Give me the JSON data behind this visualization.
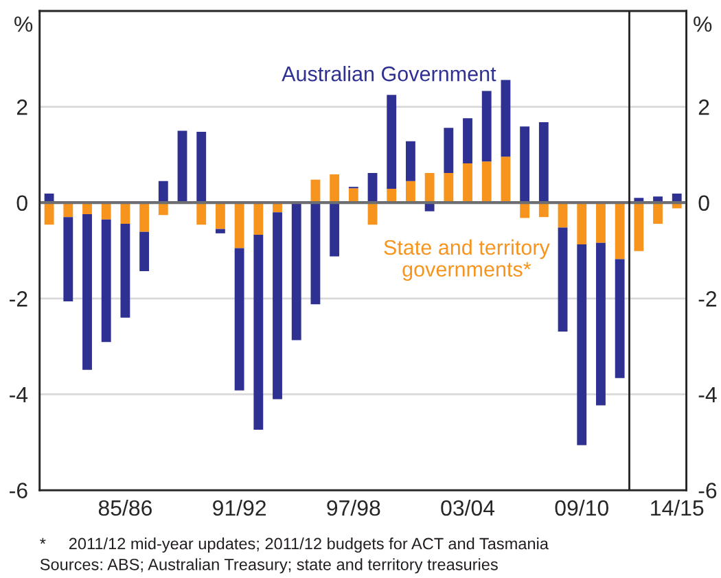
{
  "chart_data": {
    "type": "bar",
    "stacked": true,
    "categories": [
      null,
      null,
      null,
      null,
      "85/86",
      null,
      null,
      null,
      null,
      null,
      "91/92",
      null,
      null,
      null,
      null,
      null,
      "97/98",
      null,
      null,
      null,
      null,
      null,
      "03/04",
      null,
      null,
      null,
      null,
      null,
      "09/10",
      null,
      null,
      null,
      null,
      "14/15"
    ],
    "series": [
      {
        "name": "State and territory governments*",
        "color": "#f7941d",
        "values": [
          -0.46,
          -0.3,
          -0.24,
          -0.35,
          -0.44,
          -0.61,
          -0.26,
          0.0,
          -0.46,
          -0.55,
          -0.95,
          -0.67,
          -0.2,
          0.0,
          0.48,
          0.59,
          0.3,
          -0.46,
          0.29,
          0.45,
          0.62,
          0.62,
          0.82,
          0.86,
          0.96,
          -0.32,
          -0.3,
          -0.52,
          -0.87,
          -0.84,
          -1.18,
          -1.01,
          -0.44,
          -0.12
        ]
      },
      {
        "name": "Australian Government",
        "color": "#2e3192",
        "values": [
          0.19,
          -1.76,
          -3.25,
          -2.56,
          -1.96,
          -0.82,
          0.45,
          1.5,
          1.48,
          -0.09,
          -2.97,
          -4.07,
          -3.9,
          -2.87,
          -2.12,
          -1.12,
          0.03,
          0.62,
          1.96,
          0.83,
          -0.18,
          0.94,
          0.94,
          1.47,
          1.6,
          1.59,
          1.68,
          -2.17,
          -4.19,
          -3.39,
          -2.48,
          0.1,
          0.13,
          0.19
        ]
      }
    ],
    "ylim": [
      -6,
      4
    ],
    "yticks": [
      -6,
      -4,
      -2,
      0,
      2
    ],
    "y2lim": [
      -6,
      4
    ],
    "y2ticks": [
      -6,
      -4,
      -2,
      0,
      2
    ],
    "ylabel": "%",
    "y2label": "%",
    "grid": "y",
    "legend": false,
    "ref_lines": [
      {
        "axis": "y",
        "value": 0,
        "color": "#6d6e71"
      }
    ],
    "annotations": [
      "*     2011/12 mid-year updates; 2011/12 budgets for ACT and Tasmania",
      "Sources: ABS; Australian Treasury; state and territory treasuries"
    ]
  }
}
